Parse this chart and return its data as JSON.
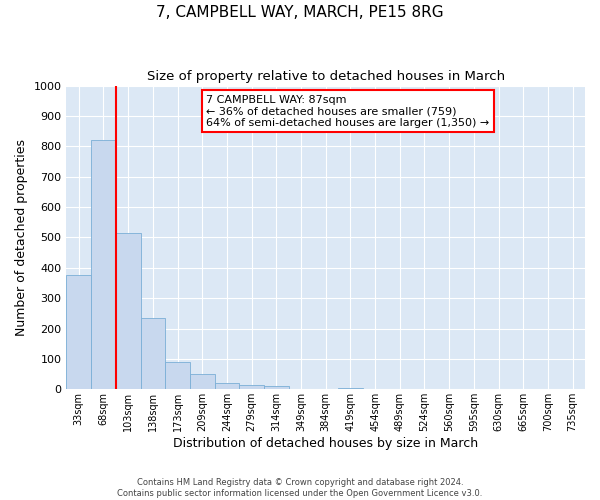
{
  "title": "7, CAMPBELL WAY, MARCH, PE15 8RG",
  "subtitle": "Size of property relative to detached houses in March",
  "xlabel": "Distribution of detached houses by size in March",
  "ylabel": "Number of detached properties",
  "bar_labels": [
    "33sqm",
    "68sqm",
    "103sqm",
    "138sqm",
    "173sqm",
    "209sqm",
    "244sqm",
    "279sqm",
    "314sqm",
    "349sqm",
    "384sqm",
    "419sqm",
    "454sqm",
    "489sqm",
    "524sqm",
    "560sqm",
    "595sqm",
    "630sqm",
    "665sqm",
    "700sqm",
    "735sqm"
  ],
  "bar_values": [
    375,
    820,
    515,
    235,
    90,
    50,
    20,
    15,
    10,
    0,
    0,
    5,
    0,
    0,
    0,
    0,
    0,
    0,
    0,
    0,
    0
  ],
  "bar_color": "#c8d8ee",
  "bar_edge_color": "#7aaed6",
  "vline_color": "red",
  "ylim": [
    0,
    1000
  ],
  "yticks": [
    0,
    100,
    200,
    300,
    400,
    500,
    600,
    700,
    800,
    900,
    1000
  ],
  "annotation_line1": "7 CAMPBELL WAY: 87sqm",
  "annotation_line2": "← 36% of detached houses are smaller (759)",
  "annotation_line3": "64% of semi-detached houses are larger (1,350) →",
  "plot_bg_color": "#dce8f5",
  "footer_line1": "Contains HM Land Registry data © Crown copyright and database right 2024.",
  "footer_line2": "Contains public sector information licensed under the Open Government Licence v3.0.",
  "title_fontsize": 11,
  "subtitle_fontsize": 9.5,
  "xlabel_fontsize": 9,
  "ylabel_fontsize": 9
}
